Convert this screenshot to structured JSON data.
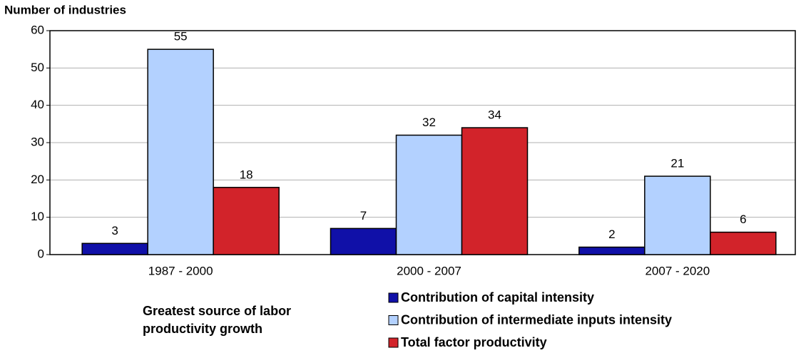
{
  "chart_data": {
    "type": "bar",
    "y_label": "Number of industries",
    "legend_title": [
      "Greatest source of labor",
      "productivity growth"
    ],
    "categories": [
      "1987 - 2000",
      "2000 - 2007",
      "2007 - 2020"
    ],
    "series": [
      {
        "name": "Contribution of capital intensity",
        "color": "#1010a8",
        "values": [
          3,
          7,
          2
        ]
      },
      {
        "name": "Contribution of intermediate inputs intensity",
        "color": "#b3d1ff",
        "values": [
          55,
          32,
          21
        ]
      },
      {
        "name": "Total factor productivity",
        "color": "#d2232a",
        "values": [
          18,
          34,
          6
        ]
      }
    ],
    "ylim": [
      0,
      60
    ],
    "yticks": [
      0,
      10,
      20,
      30,
      40,
      50,
      60
    ],
    "grid": true
  }
}
